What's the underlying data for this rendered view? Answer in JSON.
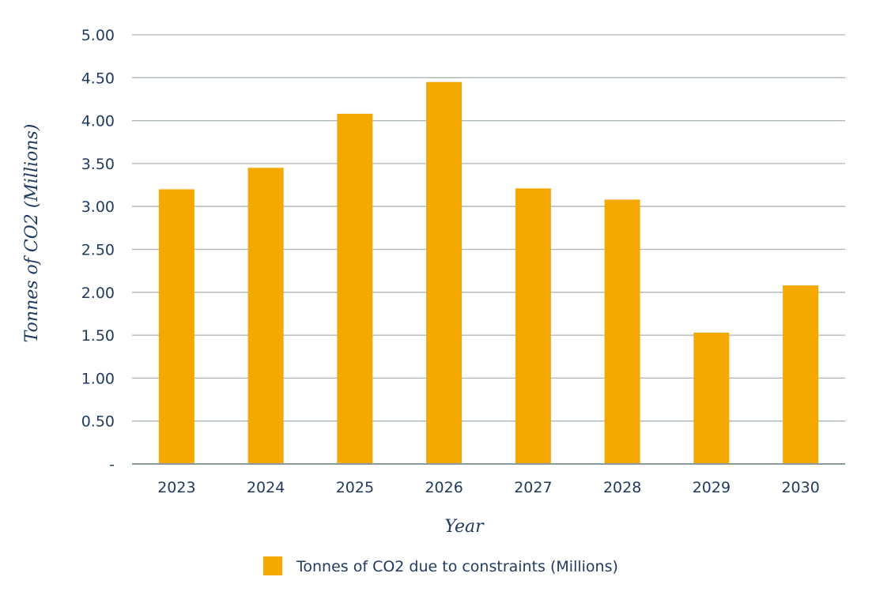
{
  "chart_data": {
    "type": "bar",
    "categories": [
      "2023",
      "2024",
      "2025",
      "2026",
      "2027",
      "2028",
      "2029",
      "2030"
    ],
    "series": [
      {
        "name": "Tonnes of CO2 due to constraints (Millions)",
        "values": [
          3.2,
          3.45,
          4.08,
          4.45,
          3.21,
          3.08,
          1.53,
          2.08
        ],
        "color": "#F5A800"
      }
    ],
    "xlabel": "Year",
    "ylabel": "Tonnes of CO2 (Millions)",
    "ylim": [
      0,
      5
    ],
    "yticks": [
      0,
      0.5,
      1,
      1.5,
      2,
      2.5,
      3,
      3.5,
      4,
      4.5,
      5
    ],
    "ytick_labels": [
      "-",
      "0.50",
      "1.00",
      "1.50",
      "2.00",
      "2.50",
      "3.00",
      "3.50",
      "4.00",
      "4.50",
      "5.00"
    ],
    "grid": true,
    "legend_position": "bottom-center",
    "colors": {
      "bar": "#F5A800",
      "text": "#1f3a5f",
      "grid": "#a9b4b6",
      "axis": "#8a9a9c"
    }
  }
}
